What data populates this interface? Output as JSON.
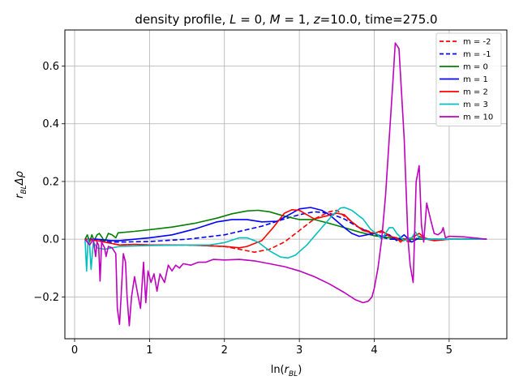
{
  "chart_data": {
    "type": "line",
    "title": "density profile, L = 0, M = 1, z=10.0, time=275.0",
    "title_parts": {
      "prefix": "density profile, ",
      "L_sym": "L",
      "L_val": " = 0, ",
      "M_sym": "M",
      "M_val": " = 1, ",
      "z_sym": "z",
      "suffix": "=10.0, time=275.0"
    },
    "xlabel": "ln(r_BL)",
    "xlabel_parts": {
      "pre": "ln(",
      "r": "r",
      "sub": "BL",
      "post": ")"
    },
    "ylabel": "r_BL Δρ",
    "ylabel_parts": {
      "r": "r",
      "sub": "BL",
      "rest": "Δρ"
    },
    "xlim": [
      -0.13,
      5.77
    ],
    "ylim": [
      -0.345,
      0.725
    ],
    "xticks": [
      0,
      1,
      2,
      3,
      4,
      5
    ],
    "xtick_labels": [
      "0",
      "1",
      "2",
      "3",
      "4",
      "5"
    ],
    "yticks": [
      -0.2,
      0.0,
      0.2,
      0.4,
      0.6
    ],
    "ytick_labels": [
      "−0.2",
      "0.0",
      "0.2",
      "0.4",
      "0.6"
    ],
    "grid": true,
    "legend_position": "top-right",
    "series": [
      {
        "name": "m = -2",
        "color": "#ff0000",
        "dash": "dashed",
        "points": [
          [
            0.14,
            0.0
          ],
          [
            0.3,
            -0.005
          ],
          [
            0.5,
            -0.015
          ],
          [
            0.6,
            -0.02
          ],
          [
            0.8,
            -0.018
          ],
          [
            1.0,
            -0.02
          ],
          [
            1.5,
            -0.02
          ],
          [
            2.0,
            -0.025
          ],
          [
            2.2,
            -0.035
          ],
          [
            2.4,
            -0.045
          ],
          [
            2.6,
            -0.035
          ],
          [
            2.8,
            -0.01
          ],
          [
            3.0,
            0.03
          ],
          [
            3.2,
            0.07
          ],
          [
            3.4,
            0.095
          ],
          [
            3.5,
            0.1
          ],
          [
            3.6,
            0.08
          ],
          [
            3.8,
            0.04
          ],
          [
            4.0,
            0.02
          ],
          [
            4.1,
            0.025
          ],
          [
            4.2,
            0.015
          ],
          [
            4.3,
            0.0
          ],
          [
            4.5,
            -0.01
          ],
          [
            4.6,
            0.01
          ],
          [
            4.8,
            -0.005
          ],
          [
            5.0,
            0.0
          ],
          [
            5.5,
            0.0
          ]
        ]
      },
      {
        "name": "m = -1",
        "color": "#0000ff",
        "dash": "dashed",
        "points": [
          [
            0.14,
            0.0
          ],
          [
            0.3,
            -0.005
          ],
          [
            0.5,
            -0.01
          ],
          [
            0.6,
            -0.01
          ],
          [
            1.0,
            -0.008
          ],
          [
            1.5,
            0.0
          ],
          [
            2.0,
            0.015
          ],
          [
            2.5,
            0.045
          ],
          [
            2.8,
            0.07
          ],
          [
            3.0,
            0.085
          ],
          [
            3.2,
            0.095
          ],
          [
            3.4,
            0.09
          ],
          [
            3.6,
            0.07
          ],
          [
            3.8,
            0.04
          ],
          [
            4.0,
            0.015
          ],
          [
            4.2,
            0.0
          ],
          [
            4.5,
            0.0
          ],
          [
            5.0,
            0.0
          ],
          [
            5.5,
            0.0
          ]
        ]
      },
      {
        "name": "m = 0",
        "color": "#008000",
        "dash": "solid",
        "points": [
          [
            0.14,
            0.0
          ],
          [
            0.17,
            0.015
          ],
          [
            0.2,
            -0.01
          ],
          [
            0.23,
            0.015
          ],
          [
            0.26,
            -0.005
          ],
          [
            0.3,
            0.015
          ],
          [
            0.33,
            0.02
          ],
          [
            0.37,
            0.005
          ],
          [
            0.4,
            -0.01
          ],
          [
            0.45,
            0.02
          ],
          [
            0.5,
            0.015
          ],
          [
            0.55,
            0.005
          ],
          [
            0.58,
            0.022
          ],
          [
            0.8,
            0.027
          ],
          [
            1.0,
            0.033
          ],
          [
            1.3,
            0.042
          ],
          [
            1.6,
            0.055
          ],
          [
            1.9,
            0.073
          ],
          [
            2.1,
            0.088
          ],
          [
            2.3,
            0.098
          ],
          [
            2.45,
            0.1
          ],
          [
            2.6,
            0.095
          ],
          [
            2.8,
            0.08
          ],
          [
            3.0,
            0.068
          ],
          [
            3.2,
            0.068
          ],
          [
            3.4,
            0.055
          ],
          [
            3.6,
            0.04
          ],
          [
            3.8,
            0.025
          ],
          [
            4.0,
            0.012
          ],
          [
            4.2,
            0.005
          ],
          [
            4.5,
            0.0
          ],
          [
            5.0,
            0.0
          ],
          [
            5.5,
            0.0
          ]
        ]
      },
      {
        "name": "m = 1",
        "color": "#0000ff",
        "dash": "solid",
        "points": [
          [
            0.14,
            0.0
          ],
          [
            0.3,
            0.0
          ],
          [
            0.5,
            -0.005
          ],
          [
            0.6,
            -0.005
          ],
          [
            0.8,
            0.0
          ],
          [
            1.0,
            0.005
          ],
          [
            1.3,
            0.015
          ],
          [
            1.6,
            0.035
          ],
          [
            1.9,
            0.06
          ],
          [
            2.1,
            0.068
          ],
          [
            2.3,
            0.068
          ],
          [
            2.5,
            0.06
          ],
          [
            2.7,
            0.062
          ],
          [
            2.9,
            0.09
          ],
          [
            3.0,
            0.105
          ],
          [
            3.15,
            0.11
          ],
          [
            3.3,
            0.1
          ],
          [
            3.4,
            0.085
          ],
          [
            3.6,
            0.04
          ],
          [
            3.7,
            0.02
          ],
          [
            3.8,
            0.01
          ],
          [
            4.0,
            0.02
          ],
          [
            4.1,
            0.01
          ],
          [
            4.2,
            0.015
          ],
          [
            4.3,
            -0.005
          ],
          [
            4.4,
            0.015
          ],
          [
            4.5,
            -0.01
          ],
          [
            4.6,
            0.005
          ],
          [
            4.7,
            0.0
          ],
          [
            5.0,
            0.0
          ],
          [
            5.5,
            0.0
          ]
        ]
      },
      {
        "name": "m = 2",
        "color": "#ff0000",
        "dash": "solid",
        "points": [
          [
            0.14,
            0.0
          ],
          [
            0.3,
            -0.005
          ],
          [
            0.5,
            -0.015
          ],
          [
            0.6,
            -0.02
          ],
          [
            0.8,
            -0.018
          ],
          [
            1.0,
            -0.02
          ],
          [
            1.5,
            -0.02
          ],
          [
            2.0,
            -0.025
          ],
          [
            2.2,
            -0.03
          ],
          [
            2.3,
            -0.025
          ],
          [
            2.5,
            -0.005
          ],
          [
            2.65,
            0.04
          ],
          [
            2.8,
            0.09
          ],
          [
            2.9,
            0.102
          ],
          [
            3.0,
            0.1
          ],
          [
            3.1,
            0.085
          ],
          [
            3.2,
            0.07
          ],
          [
            3.35,
            0.08
          ],
          [
            3.5,
            0.09
          ],
          [
            3.6,
            0.085
          ],
          [
            3.7,
            0.06
          ],
          [
            3.85,
            0.03
          ],
          [
            4.0,
            0.02
          ],
          [
            4.1,
            0.03
          ],
          [
            4.2,
            0.01
          ],
          [
            4.3,
            0.005
          ],
          [
            4.35,
            -0.01
          ],
          [
            4.4,
            0.0
          ],
          [
            4.5,
            0.005
          ],
          [
            4.6,
            0.02
          ],
          [
            4.7,
            0.0
          ],
          [
            4.8,
            -0.005
          ],
          [
            5.0,
            0.0
          ],
          [
            5.5,
            0.0
          ]
        ]
      },
      {
        "name": "m = 3",
        "color": "#00bfbf",
        "dash": "solid",
        "points": [
          [
            0.14,
            0.0
          ],
          [
            0.16,
            -0.11
          ],
          [
            0.18,
            0.0
          ],
          [
            0.2,
            -0.02
          ],
          [
            0.22,
            -0.105
          ],
          [
            0.25,
            -0.01
          ],
          [
            0.3,
            -0.03
          ],
          [
            0.4,
            -0.035
          ],
          [
            0.5,
            -0.03
          ],
          [
            0.6,
            -0.025
          ],
          [
            1.0,
            -0.022
          ],
          [
            1.5,
            -0.02
          ],
          [
            1.8,
            -0.02
          ],
          [
            2.0,
            -0.012
          ],
          [
            2.2,
            0.005
          ],
          [
            2.3,
            0.005
          ],
          [
            2.45,
            -0.01
          ],
          [
            2.6,
            -0.04
          ],
          [
            2.75,
            -0.062
          ],
          [
            2.85,
            -0.065
          ],
          [
            2.95,
            -0.055
          ],
          [
            3.1,
            -0.02
          ],
          [
            3.3,
            0.04
          ],
          [
            3.45,
            0.085
          ],
          [
            3.55,
            0.108
          ],
          [
            3.6,
            0.11
          ],
          [
            3.7,
            0.1
          ],
          [
            3.85,
            0.07
          ],
          [
            3.95,
            0.035
          ],
          [
            4.05,
            0.015
          ],
          [
            4.1,
            0.0
          ],
          [
            4.2,
            0.04
          ],
          [
            4.25,
            0.04
          ],
          [
            4.3,
            0.02
          ],
          [
            4.4,
            -0.005
          ],
          [
            4.5,
            0.005
          ],
          [
            4.55,
            0.025
          ],
          [
            4.6,
            0.005
          ],
          [
            4.7,
            0.0
          ],
          [
            5.0,
            0.0
          ],
          [
            5.5,
            0.0
          ]
        ]
      },
      {
        "name": "m = 10",
        "color": "#bf00bf",
        "dash": "solid",
        "points": [
          [
            0.14,
            0.0
          ],
          [
            0.2,
            -0.02
          ],
          [
            0.25,
            0.0
          ],
          [
            0.28,
            -0.06
          ],
          [
            0.3,
            -0.01
          ],
          [
            0.32,
            -0.02
          ],
          [
            0.34,
            -0.145
          ],
          [
            0.36,
            -0.01
          ],
          [
            0.4,
            -0.03
          ],
          [
            0.42,
            -0.06
          ],
          [
            0.45,
            -0.025
          ],
          [
            0.5,
            -0.03
          ],
          [
            0.55,
            -0.05
          ],
          [
            0.57,
            -0.24
          ],
          [
            0.6,
            -0.295
          ],
          [
            0.62,
            -0.2
          ],
          [
            0.65,
            -0.05
          ],
          [
            0.68,
            -0.08
          ],
          [
            0.7,
            -0.2
          ],
          [
            0.73,
            -0.3
          ],
          [
            0.76,
            -0.2
          ],
          [
            0.8,
            -0.13
          ],
          [
            0.85,
            -0.2
          ],
          [
            0.88,
            -0.24
          ],
          [
            0.92,
            -0.08
          ],
          [
            0.95,
            -0.22
          ],
          [
            0.98,
            -0.11
          ],
          [
            1.02,
            -0.15
          ],
          [
            1.06,
            -0.12
          ],
          [
            1.1,
            -0.18
          ],
          [
            1.14,
            -0.12
          ],
          [
            1.2,
            -0.15
          ],
          [
            1.25,
            -0.09
          ],
          [
            1.3,
            -0.11
          ],
          [
            1.35,
            -0.09
          ],
          [
            1.4,
            -0.1
          ],
          [
            1.45,
            -0.085
          ],
          [
            1.55,
            -0.09
          ],
          [
            1.65,
            -0.08
          ],
          [
            1.75,
            -0.08
          ],
          [
            1.85,
            -0.07
          ],
          [
            2.0,
            -0.072
          ],
          [
            2.2,
            -0.07
          ],
          [
            2.4,
            -0.075
          ],
          [
            2.6,
            -0.085
          ],
          [
            2.8,
            -0.095
          ],
          [
            3.0,
            -0.11
          ],
          [
            3.2,
            -0.13
          ],
          [
            3.4,
            -0.155
          ],
          [
            3.6,
            -0.185
          ],
          [
            3.75,
            -0.21
          ],
          [
            3.85,
            -0.22
          ],
          [
            3.92,
            -0.215
          ],
          [
            3.97,
            -0.2
          ],
          [
            4.0,
            -0.17
          ],
          [
            4.05,
            -0.1
          ],
          [
            4.1,
            0.0
          ],
          [
            4.15,
            0.15
          ],
          [
            4.2,
            0.35
          ],
          [
            4.25,
            0.55
          ],
          [
            4.28,
            0.68
          ],
          [
            4.33,
            0.66
          ],
          [
            4.4,
            0.35
          ],
          [
            4.45,
            0.0
          ],
          [
            4.48,
            -0.09
          ],
          [
            4.52,
            -0.15
          ],
          [
            4.56,
            0.2
          ],
          [
            4.6,
            0.255
          ],
          [
            4.63,
            0.05
          ],
          [
            4.66,
            -0.01
          ],
          [
            4.7,
            0.125
          ],
          [
            4.75,
            0.07
          ],
          [
            4.8,
            0.02
          ],
          [
            4.85,
            0.015
          ],
          [
            4.9,
            0.025
          ],
          [
            4.92,
            0.04
          ],
          [
            4.95,
            0.005
          ],
          [
            5.0,
            0.01
          ],
          [
            5.2,
            0.008
          ],
          [
            5.5,
            0.0
          ]
        ]
      }
    ]
  }
}
